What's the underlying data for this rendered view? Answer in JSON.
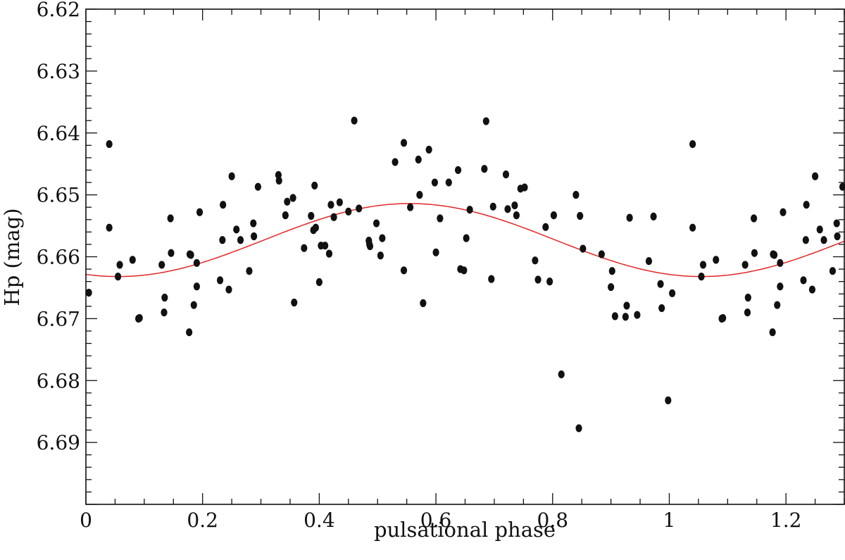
{
  "chart_data": {
    "type": "scatter",
    "xlabel": "pulsational phase",
    "ylabel": "Hp (mag)",
    "xlim": [
      0,
      1.3
    ],
    "ylim": [
      6.62,
      6.7
    ],
    "y_inverted": true,
    "x_ticks": [
      {
        "value": 0,
        "label": "0"
      },
      {
        "value": 0.2,
        "label": "0.2"
      },
      {
        "value": 0.4,
        "label": "0.4"
      },
      {
        "value": 0.6,
        "label": "0.6"
      },
      {
        "value": 0.8,
        "label": "0.8"
      },
      {
        "value": 1.0,
        "label": "1"
      },
      {
        "value": 1.2,
        "label": "1.2"
      }
    ],
    "y_ticks": [
      {
        "value": 6.62,
        "label": "6.62"
      },
      {
        "value": 6.63,
        "label": "6.63"
      },
      {
        "value": 6.64,
        "label": "6.64"
      },
      {
        "value": 6.65,
        "label": "6.65"
      },
      {
        "value": 6.66,
        "label": "6.66"
      },
      {
        "value": 6.67,
        "label": "6.67"
      },
      {
        "value": 6.68,
        "label": "6.68"
      },
      {
        "value": 6.69,
        "label": "6.69"
      }
    ],
    "grid": false,
    "colors": {
      "points": "#111111",
      "fit": "#e32626",
      "axes": "#111111"
    },
    "fit_curve": {
      "type": "sinusoid",
      "mean": 6.6573,
      "amplitude": 0.0059,
      "max_brightness_phase": 0.555
    },
    "series": [
      {
        "points": [
          [
            0.005,
            6.6658
          ],
          [
            0.04,
            6.6418
          ],
          [
            0.04,
            6.6553
          ],
          [
            0.055,
            6.6632
          ],
          [
            0.058,
            6.6613
          ],
          [
            0.08,
            6.6605
          ],
          [
            0.09,
            6.67
          ],
          [
            0.092,
            6.6699
          ],
          [
            0.13,
            6.6613
          ],
          [
            0.134,
            6.669
          ],
          [
            0.135,
            6.6666
          ],
          [
            0.145,
            6.6538
          ],
          [
            0.146,
            6.6594
          ],
          [
            0.177,
            6.6722
          ],
          [
            0.178,
            6.6596
          ],
          [
            0.18,
            6.6597
          ],
          [
            0.185,
            6.6678
          ],
          [
            0.19,
            6.6648
          ],
          [
            0.19,
            6.661
          ],
          [
            0.195,
            6.6528
          ],
          [
            0.23,
            6.6638
          ],
          [
            0.234,
            6.6573
          ],
          [
            0.235,
            6.6516
          ],
          [
            0.245,
            6.6653
          ],
          [
            0.25,
            6.647
          ],
          [
            0.258,
            6.6556
          ],
          [
            0.265,
            6.6573
          ],
          [
            0.28,
            6.6623
          ],
          [
            0.287,
            6.6546
          ],
          [
            0.288,
            6.6567
          ],
          [
            0.295,
            6.6487
          ],
          [
            0.33,
            6.6468
          ],
          [
            0.331,
            6.6477
          ],
          [
            0.342,
            6.6533
          ],
          [
            0.345,
            6.6511
          ],
          [
            0.355,
            6.6505
          ],
          [
            0.357,
            6.6674
          ],
          [
            0.374,
            6.6586
          ],
          [
            0.386,
            6.6534
          ],
          [
            0.39,
            6.6557
          ],
          [
            0.392,
            6.6485
          ],
          [
            0.394,
            6.6553
          ],
          [
            0.4,
            6.6641
          ],
          [
            0.403,
            6.6582
          ],
          [
            0.41,
            6.6582
          ],
          [
            0.417,
            6.6595
          ],
          [
            0.42,
            6.6516
          ],
          [
            0.425,
            6.6536
          ],
          [
            0.435,
            6.6512
          ],
          [
            0.45,
            6.6527
          ],
          [
            0.46,
            6.638
          ],
          [
            0.468,
            6.6522
          ],
          [
            0.485,
            6.6574
          ],
          [
            0.486,
            6.658
          ],
          [
            0.487,
            6.6583
          ],
          [
            0.498,
            6.6546
          ],
          [
            0.505,
            6.6598
          ],
          [
            0.508,
            6.657
          ],
          [
            0.53,
            6.6447
          ],
          [
            0.545,
            6.6416
          ],
          [
            0.545,
            6.6622
          ],
          [
            0.556,
            6.652
          ],
          [
            0.57,
            6.6443
          ],
          [
            0.572,
            6.65
          ],
          [
            0.578,
            6.6675
          ],
          [
            0.588,
            6.6427
          ],
          [
            0.598,
            6.648
          ],
          [
            0.6,
            6.6593
          ],
          [
            0.607,
            6.6538
          ],
          [
            0.622,
            6.648
          ],
          [
            0.638,
            6.646
          ],
          [
            0.642,
            6.662
          ],
          [
            0.648,
            6.6622
          ],
          [
            0.652,
            6.657
          ],
          [
            0.658,
            6.6524
          ],
          [
            0.683,
            6.6458
          ],
          [
            0.686,
            6.6381
          ],
          [
            0.695,
            6.6636
          ],
          [
            0.698,
            6.6519
          ],
          [
            0.72,
            6.6467
          ],
          [
            0.723,
            6.6523
          ],
          [
            0.735,
            6.6517
          ],
          [
            0.738,
            6.6533
          ],
          [
            0.745,
            6.649
          ],
          [
            0.752,
            6.6488
          ],
          [
            0.77,
            6.6606
          ],
          [
            0.775,
            6.6637
          ],
          [
            0.788,
            6.6552
          ],
          [
            0.795,
            6.664
          ],
          [
            0.802,
            6.6533
          ],
          [
            0.815,
            6.679
          ],
          [
            0.84,
            6.65
          ],
          [
            0.845,
            6.6877
          ],
          [
            0.847,
            6.6534
          ],
          [
            0.852,
            6.6587
          ],
          [
            0.884,
            6.6596
          ],
          [
            0.9,
            6.6649
          ],
          [
            0.902,
            6.6623
          ],
          [
            0.907,
            6.6696
          ],
          [
            0.925,
            6.6697
          ],
          [
            0.927,
            6.6679
          ],
          [
            0.932,
            6.6537
          ],
          [
            0.945,
            6.6694
          ],
          [
            0.965,
            6.6607
          ],
          [
            0.973,
            6.6535
          ],
          [
            0.985,
            6.6644
          ],
          [
            0.987,
            6.6683
          ],
          [
            0.998,
            6.6832
          ],
          [
            1.005,
            6.6659
          ],
          [
            1.04,
            6.6418
          ],
          [
            1.04,
            6.6553
          ],
          [
            1.055,
            6.6632
          ],
          [
            1.058,
            6.6613
          ],
          [
            1.08,
            6.6605
          ],
          [
            1.09,
            6.67
          ],
          [
            1.092,
            6.6699
          ],
          [
            1.13,
            6.6613
          ],
          [
            1.134,
            6.669
          ],
          [
            1.135,
            6.6666
          ],
          [
            1.145,
            6.6538
          ],
          [
            1.146,
            6.6594
          ],
          [
            1.177,
            6.6722
          ],
          [
            1.178,
            6.6596
          ],
          [
            1.18,
            6.6597
          ],
          [
            1.185,
            6.6678
          ],
          [
            1.19,
            6.6648
          ],
          [
            1.19,
            6.661
          ],
          [
            1.195,
            6.6528
          ],
          [
            1.23,
            6.6638
          ],
          [
            1.234,
            6.6573
          ],
          [
            1.235,
            6.6516
          ],
          [
            1.245,
            6.6653
          ],
          [
            1.25,
            6.647
          ],
          [
            1.258,
            6.6556
          ],
          [
            1.265,
            6.6573
          ],
          [
            1.28,
            6.6623
          ],
          [
            1.287,
            6.6546
          ],
          [
            1.288,
            6.6567
          ],
          [
            1.297,
            6.6487
          ]
        ]
      }
    ]
  }
}
